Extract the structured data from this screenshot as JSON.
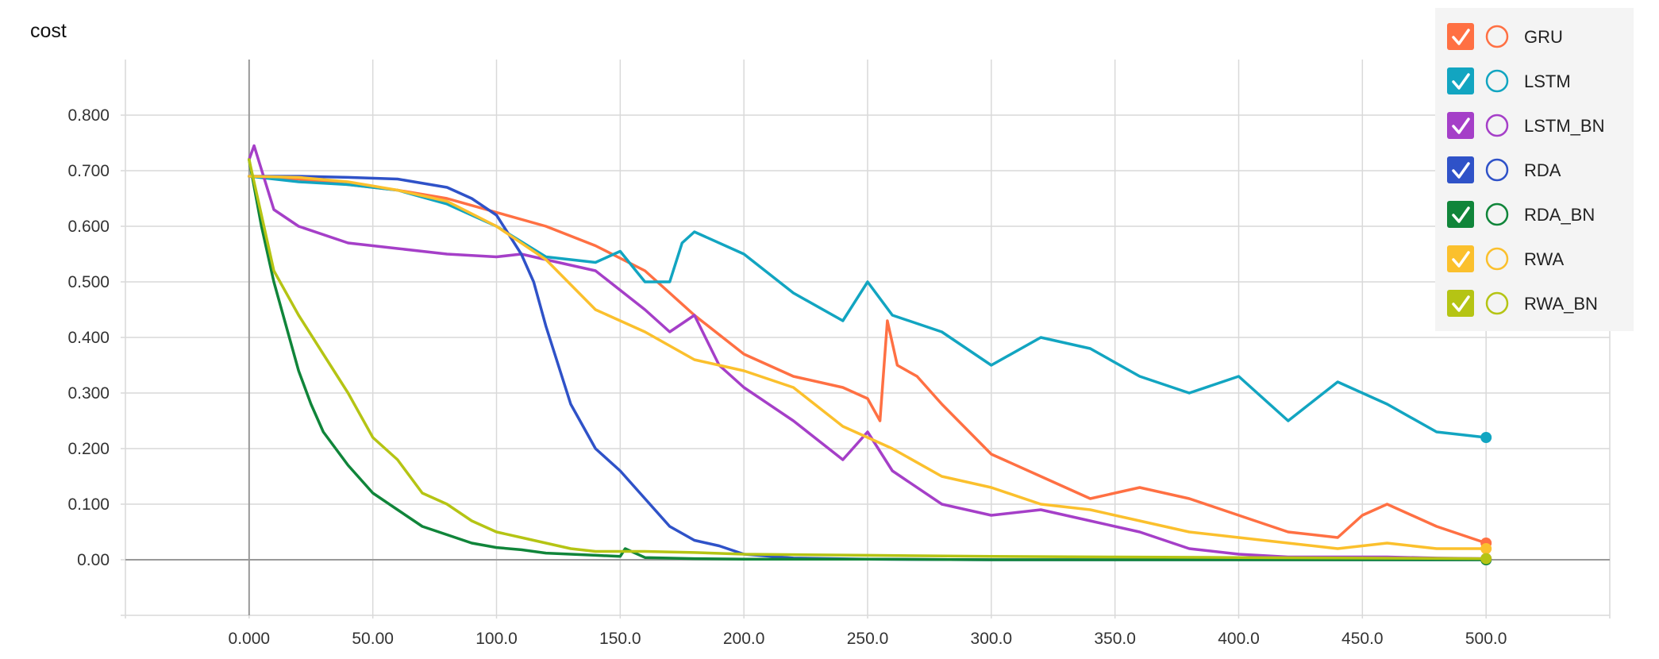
{
  "chart_data": {
    "type": "line",
    "title": "cost",
    "xlabel": "",
    "ylabel": "",
    "xlim": [
      -50,
      550
    ],
    "ylim": [
      -0.1,
      0.9
    ],
    "x_ticks": [
      0,
      50,
      100,
      150,
      200,
      250,
      300,
      350,
      400,
      450,
      500
    ],
    "x_tick_labels": [
      "0.000",
      "50.00",
      "100.0",
      "150.0",
      "200.0",
      "250.0",
      "300.0",
      "350.0",
      "400.0",
      "450.0",
      "500.0"
    ],
    "y_ticks": [
      0,
      0.1,
      0.2,
      0.3,
      0.4,
      0.5,
      0.6,
      0.7,
      0.8
    ],
    "y_tick_labels": [
      "0.00",
      "0.100",
      "0.200",
      "0.300",
      "0.400",
      "0.500",
      "0.600",
      "0.700",
      "0.800"
    ],
    "grid": true,
    "legend_position": "top-right",
    "series": [
      {
        "name": "GRU",
        "color": "#ff7043",
        "checked": true,
        "x": [
          0,
          20,
          40,
          60,
          80,
          100,
          120,
          140,
          160,
          170,
          180,
          200,
          220,
          240,
          250,
          255,
          258,
          262,
          270,
          280,
          300,
          320,
          340,
          360,
          380,
          400,
          420,
          440,
          450,
          460,
          480,
          500
        ],
        "y": [
          0.69,
          0.685,
          0.675,
          0.665,
          0.65,
          0.625,
          0.6,
          0.565,
          0.52,
          0.48,
          0.44,
          0.37,
          0.33,
          0.31,
          0.29,
          0.25,
          0.43,
          0.35,
          0.33,
          0.28,
          0.19,
          0.15,
          0.11,
          0.13,
          0.11,
          0.08,
          0.05,
          0.04,
          0.08,
          0.1,
          0.06,
          0.03
        ]
      },
      {
        "name": "LSTM",
        "color": "#12a5c1",
        "checked": true,
        "x": [
          0,
          20,
          40,
          60,
          80,
          100,
          120,
          140,
          150,
          160,
          170,
          175,
          180,
          200,
          220,
          240,
          250,
          260,
          280,
          300,
          320,
          340,
          360,
          380,
          400,
          420,
          440,
          460,
          480,
          500
        ],
        "y": [
          0.69,
          0.68,
          0.675,
          0.665,
          0.64,
          0.6,
          0.545,
          0.535,
          0.555,
          0.5,
          0.5,
          0.57,
          0.59,
          0.55,
          0.48,
          0.43,
          0.5,
          0.44,
          0.41,
          0.35,
          0.4,
          0.38,
          0.33,
          0.3,
          0.33,
          0.25,
          0.32,
          0.28,
          0.23,
          0.22
        ]
      },
      {
        "name": "LSTM_BN",
        "color": "#a53fc8",
        "checked": true,
        "x": [
          0,
          2,
          10,
          20,
          40,
          60,
          80,
          100,
          110,
          120,
          140,
          160,
          170,
          180,
          190,
          200,
          220,
          240,
          250,
          260,
          280,
          300,
          320,
          340,
          360,
          380,
          400,
          420,
          440,
          460,
          480,
          500
        ],
        "y": [
          0.72,
          0.745,
          0.63,
          0.6,
          0.57,
          0.56,
          0.55,
          0.545,
          0.55,
          0.54,
          0.52,
          0.45,
          0.41,
          0.44,
          0.35,
          0.31,
          0.25,
          0.18,
          0.23,
          0.16,
          0.1,
          0.08,
          0.09,
          0.07,
          0.05,
          0.02,
          0.01,
          0.005,
          0.005,
          0.005,
          0.003,
          0.002
        ]
      },
      {
        "name": "RDA",
        "color": "#2f52c8",
        "checked": true,
        "x": [
          0,
          20,
          40,
          60,
          80,
          90,
          100,
          110,
          115,
          120,
          130,
          140,
          150,
          160,
          170,
          180,
          190,
          200,
          220,
          250,
          300,
          350,
          400,
          450,
          500
        ],
        "y": [
          0.69,
          0.69,
          0.688,
          0.685,
          0.67,
          0.65,
          0.62,
          0.55,
          0.5,
          0.42,
          0.28,
          0.2,
          0.16,
          0.11,
          0.06,
          0.035,
          0.025,
          0.01,
          0.003,
          0.001,
          0.0,
          0.0,
          0.0,
          0.0,
          0.0
        ]
      },
      {
        "name": "RDA_BN",
        "color": "#10853a",
        "checked": true,
        "x": [
          0,
          5,
          10,
          15,
          20,
          25,
          30,
          40,
          50,
          60,
          70,
          80,
          90,
          100,
          110,
          120,
          130,
          140,
          150,
          152,
          160,
          180,
          200,
          250,
          300,
          350,
          400,
          450,
          500
        ],
        "y": [
          0.72,
          0.6,
          0.5,
          0.42,
          0.34,
          0.28,
          0.23,
          0.17,
          0.12,
          0.09,
          0.06,
          0.045,
          0.03,
          0.022,
          0.018,
          0.012,
          0.01,
          0.008,
          0.006,
          0.02,
          0.004,
          0.002,
          0.001,
          0.001,
          0.0,
          0.0,
          0.0,
          0.0,
          0.0
        ]
      },
      {
        "name": "RWA",
        "color": "#fbc02d",
        "checked": true,
        "x": [
          0,
          20,
          40,
          60,
          80,
          100,
          120,
          140,
          160,
          180,
          200,
          220,
          240,
          260,
          280,
          300,
          320,
          340,
          360,
          380,
          400,
          420,
          440,
          460,
          480,
          500
        ],
        "y": [
          0.69,
          0.688,
          0.68,
          0.665,
          0.645,
          0.6,
          0.54,
          0.45,
          0.41,
          0.36,
          0.34,
          0.31,
          0.24,
          0.2,
          0.15,
          0.13,
          0.1,
          0.09,
          0.07,
          0.05,
          0.04,
          0.03,
          0.02,
          0.03,
          0.02,
          0.02
        ]
      },
      {
        "name": "RWA_BN",
        "color": "#b5c414",
        "checked": true,
        "x": [
          0,
          10,
          20,
          30,
          40,
          50,
          60,
          70,
          80,
          90,
          100,
          110,
          120,
          130,
          140,
          150,
          160,
          180,
          200,
          250,
          300,
          350,
          400,
          450,
          500
        ],
        "y": [
          0.72,
          0.52,
          0.44,
          0.37,
          0.3,
          0.22,
          0.18,
          0.12,
          0.1,
          0.07,
          0.05,
          0.04,
          0.03,
          0.02,
          0.015,
          0.015,
          0.015,
          0.013,
          0.01,
          0.008,
          0.006,
          0.005,
          0.004,
          0.003,
          0.002
        ]
      }
    ]
  }
}
